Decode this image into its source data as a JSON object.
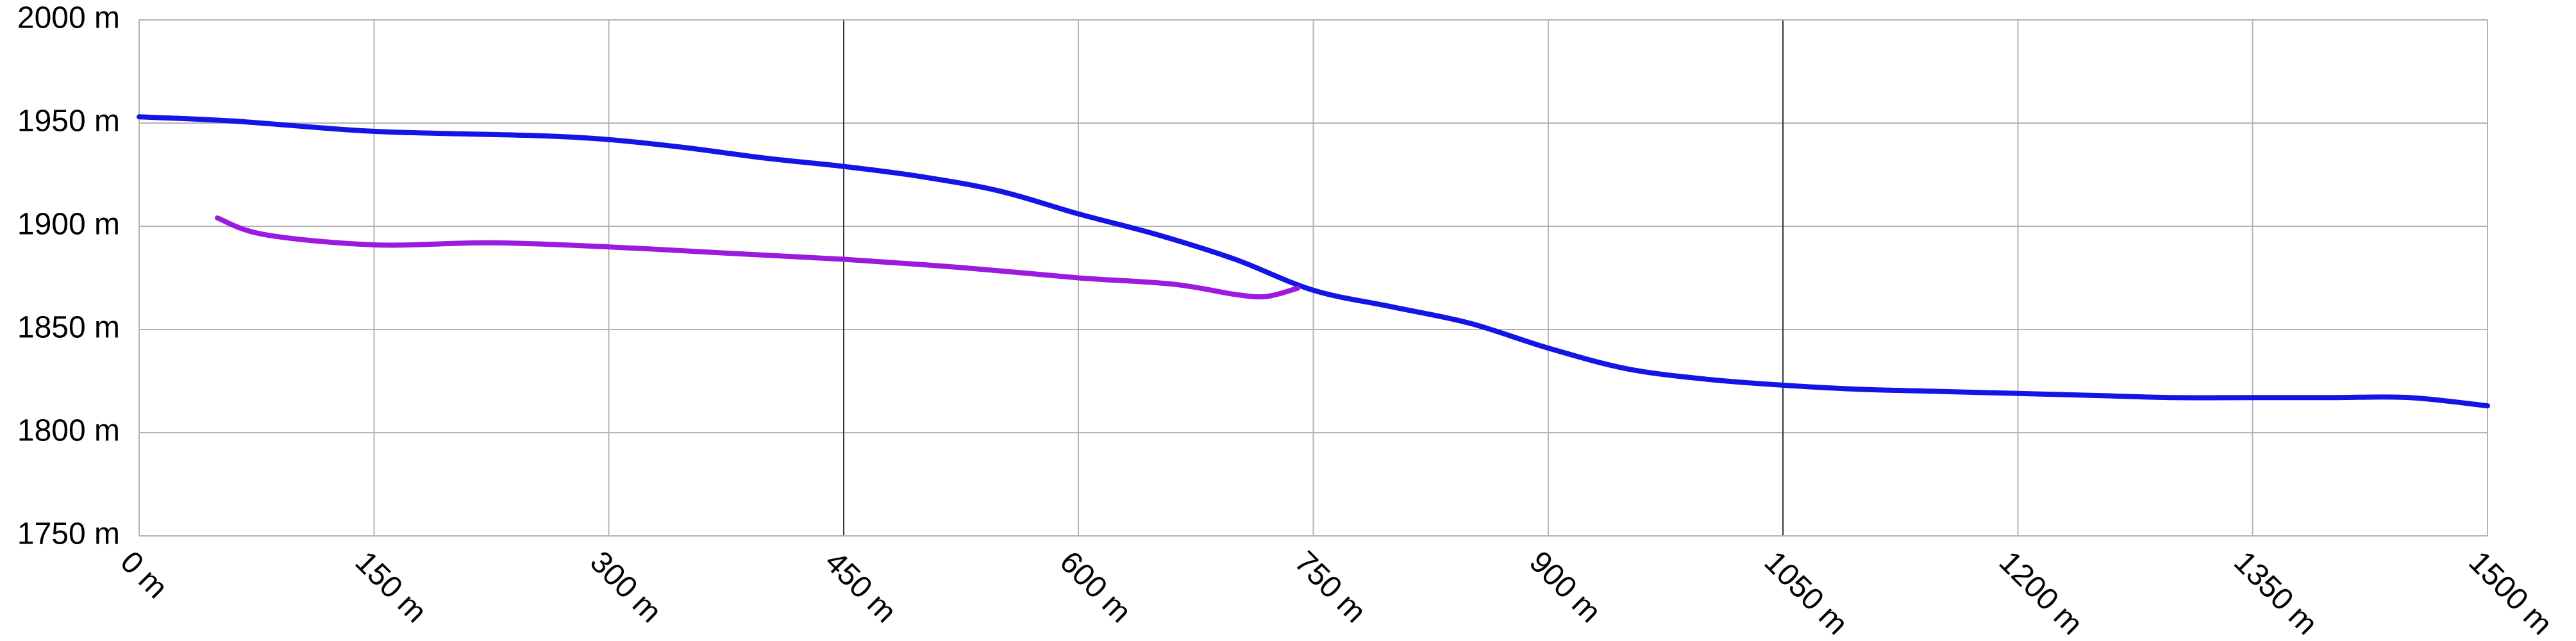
{
  "chart_data": {
    "type": "line",
    "title": "",
    "xlabel": "",
    "ylabel": "",
    "x_unit": "m",
    "y_unit": "m",
    "xlim": [
      0,
      1500
    ],
    "ylim": [
      1750,
      2000
    ],
    "grid": true,
    "legend": "none",
    "x_ticks": [
      "0 m",
      "150 m",
      "300 m",
      "450 m",
      "600 m",
      "750 m",
      "900 m",
      "1050 m",
      "1200 m",
      "1350 m",
      "1500 m"
    ],
    "y_ticks": [
      "2000 m",
      "1950 m",
      "1900 m",
      "1850 m",
      "1800 m",
      "1750 m"
    ],
    "series": [
      {
        "color": "#1414e6",
        "x": [
          0,
          60,
          150,
          250,
          300,
          350,
          400,
          450,
          500,
          550,
          600,
          650,
          700,
          750,
          800,
          850,
          900,
          950,
          1000,
          1050,
          1100,
          1150,
          1200,
          1250,
          1300,
          1350,
          1400,
          1450,
          1500
        ],
        "y": [
          1953,
          1951,
          1946,
          1944,
          1942,
          1938,
          1933,
          1929,
          1924,
          1917,
          1906,
          1896,
          1884,
          1869,
          1861,
          1853,
          1841,
          1831,
          1826,
          1823,
          1821,
          1820,
          1819,
          1818,
          1817,
          1817,
          1817,
          1817,
          1813
        ]
      },
      {
        "color": "#9b1ae0",
        "x": [
          50,
          80,
          150,
          225,
          300,
          375,
          450,
          525,
          600,
          660,
          700,
          720,
          740
        ],
        "y": [
          1904,
          1896,
          1891,
          1892,
          1890,
          1887,
          1884,
          1880,
          1875,
          1872,
          1867,
          1866,
          1870
        ]
      }
    ]
  }
}
